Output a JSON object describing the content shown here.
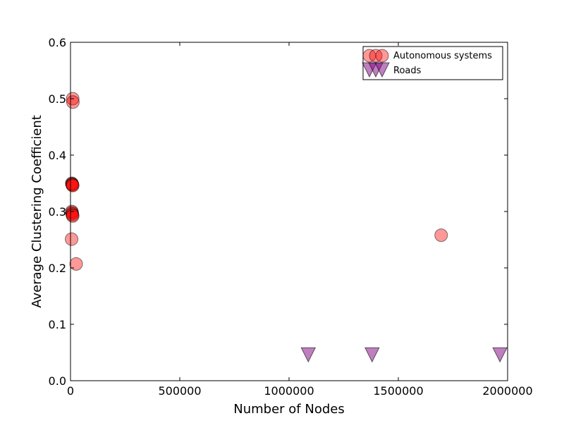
{
  "chart_data": {
    "type": "scatter",
    "title": "",
    "xlabel": "Number of Nodes",
    "ylabel": "Average Clustering Coefficient",
    "xlim": [
      0,
      2000000
    ],
    "ylim": [
      0.0,
      0.6
    ],
    "xticks": [
      0,
      500000,
      1000000,
      1500000,
      2000000
    ],
    "xtick_labels": [
      "0",
      "500000",
      "1000000",
      "1500000",
      "2000000"
    ],
    "yticks": [
      0.0,
      0.1,
      0.2,
      0.3,
      0.4,
      0.5,
      0.6
    ],
    "ytick_labels": [
      "0.0",
      "0.1",
      "0.2",
      "0.3",
      "0.4",
      "0.5",
      "0.6"
    ],
    "grid": false,
    "legend_position": "top-right",
    "series": [
      {
        "name": "Autonomous systems",
        "marker": "circle",
        "color": "#ff0000",
        "edge_color": "#000000",
        "alpha": 0.4,
        "points": [
          {
            "x": 10000,
            "y": 0.5
          },
          {
            "x": 11000,
            "y": 0.494
          },
          {
            "x": 6000,
            "y": 0.35
          },
          {
            "x": 7000,
            "y": 0.349
          },
          {
            "x": 8000,
            "y": 0.348
          },
          {
            "x": 9000,
            "y": 0.347
          },
          {
            "x": 10000,
            "y": 0.346
          },
          {
            "x": 6000,
            "y": 0.3
          },
          {
            "x": 7000,
            "y": 0.298
          },
          {
            "x": 8000,
            "y": 0.296
          },
          {
            "x": 9000,
            "y": 0.294
          },
          {
            "x": 10000,
            "y": 0.292
          },
          {
            "x": 5000,
            "y": 0.251
          },
          {
            "x": 26000,
            "y": 0.207
          },
          {
            "x": 1696000,
            "y": 0.258
          }
        ]
      },
      {
        "name": "Roads",
        "marker": "triangle-down",
        "color": "#800080",
        "edge_color": "#000000",
        "alpha": 0.5,
        "points": [
          {
            "x": 1088000,
            "y": 0.046
          },
          {
            "x": 1380000,
            "y": 0.046
          },
          {
            "x": 1965000,
            "y": 0.046
          }
        ]
      }
    ]
  }
}
